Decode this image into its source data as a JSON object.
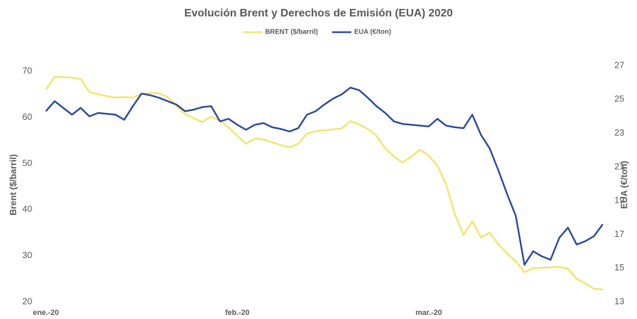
{
  "chart_data": {
    "type": "line",
    "title": "Evolución Brent y Derechos de Emisión (EUA) 2020",
    "y_label": "Brent ($/barril)",
    "y2_label": "EUA (€/ton)",
    "legend": "top",
    "categories": [
      "ene.-20",
      null,
      null,
      null,
      null,
      null,
      null,
      null,
      null,
      null,
      null,
      null,
      null,
      null,
      null,
      null,
      null,
      null,
      null,
      null,
      null,
      null,
      "feb.-20",
      null,
      null,
      null,
      null,
      null,
      null,
      null,
      null,
      null,
      null,
      null,
      null,
      null,
      null,
      null,
      null,
      null,
      null,
      null,
      null,
      null,
      "mar.-20",
      null,
      null,
      null,
      null,
      null,
      null,
      null,
      null,
      null,
      null,
      null,
      null,
      null,
      null,
      null,
      null,
      null,
      null,
      null,
      null
    ],
    "series": [
      {
        "name": "BRENT ($/barril)",
        "color": "#f2e46a",
        "axis": "y",
        "values": [
          66,
          68.8,
          68.7,
          68.6,
          68.3,
          65.5,
          65,
          64.6,
          64.3,
          64.4,
          64.3,
          65.1,
          65.3,
          65.2,
          64.4,
          62.5,
          60.7,
          59.8,
          59,
          60.2,
          59.3,
          57.8,
          56,
          54.3,
          55.4,
          55.2,
          54.6,
          54,
          53.5,
          54.3,
          56.5,
          57,
          57.2,
          57.4,
          57.6,
          59.2,
          58.5,
          57.5,
          56,
          53.3,
          51.5,
          50.2,
          51.5,
          53,
          51.7,
          49.5,
          45.5,
          39,
          34.5,
          37.5,
          34,
          35,
          32.5,
          30.5,
          28.8,
          26.4,
          27.3,
          27.4,
          27.5,
          27.6,
          27.2,
          25,
          24,
          22.8,
          22.7
        ]
      },
      {
        "name": "EUA (€/ton)",
        "color": "#2b4a9c",
        "axis": "y2",
        "values": [
          24.3,
          24.9,
          24.5,
          24.1,
          24.5,
          24.0,
          24.2,
          24.15,
          24.1,
          23.8,
          24.6,
          25.35,
          25.25,
          25.1,
          24.9,
          24.7,
          24.3,
          24.4,
          24.55,
          24.6,
          23.7,
          23.85,
          23.5,
          23.2,
          23.5,
          23.6,
          23.35,
          23.25,
          23.1,
          23.3,
          24.1,
          24.3,
          24.7,
          25.05,
          25.3,
          25.7,
          25.55,
          25.1,
          24.6,
          24.2,
          23.7,
          23.55,
          23.5,
          23.45,
          23.4,
          23.85,
          23.45,
          23.35,
          23.3,
          24.1,
          22.9,
          22.1,
          20.8,
          19.4,
          18.1,
          15.2,
          16.0,
          15.7,
          15.5,
          16.8,
          17.4,
          16.4,
          16.6,
          16.9,
          17.6
        ]
      }
    ],
    "ylim": [
      20,
      71.2
    ],
    "yticks": [
      20,
      30,
      40,
      50,
      60,
      70
    ],
    "y2lim": [
      13,
      27
    ],
    "y2ticks": [
      13,
      15,
      17,
      19,
      21,
      23,
      25,
      27
    ],
    "grid": false
  }
}
